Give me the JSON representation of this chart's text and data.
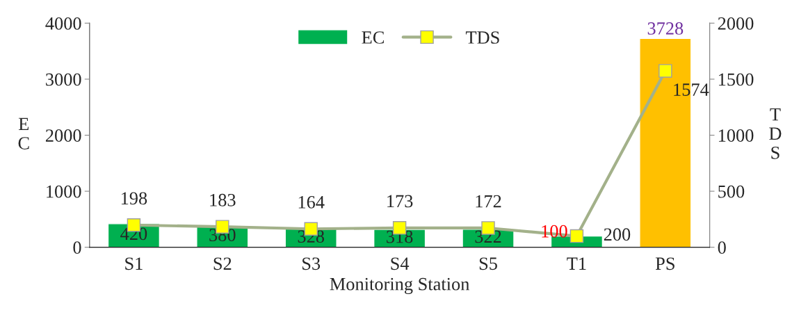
{
  "chart_data": {
    "type": "bar",
    "xlabel": "Monitoring Station",
    "ylabel": "EC",
    "y2label": "TDS",
    "categories": [
      "S1",
      "S2",
      "S3",
      "S4",
      "S5",
      "T1",
      "PS"
    ],
    "series": [
      {
        "name": "EC",
        "color": "#00b050",
        "colors": [
          "#00b050",
          "#00b050",
          "#00b050",
          "#00b050",
          "#00b050",
          "#00b050",
          "#ffc000"
        ],
        "values": [
          420,
          380,
          328,
          318,
          322,
          200,
          3728
        ]
      },
      {
        "name": "TDS",
        "type": "line",
        "axis": "y2",
        "color": "#a3b18a",
        "marker": "square",
        "values": [
          198,
          183,
          164,
          173,
          172,
          100,
          1574
        ]
      }
    ],
    "data_labels": true,
    "legend": "top",
    "grid": false,
    "ylim": [
      0,
      4000
    ],
    "yticks": [
      0,
      1000,
      2000,
      3000,
      4000
    ],
    "y2lim": [
      0,
      2000
    ],
    "y2ticks": [
      0,
      500,
      1000,
      1500,
      2000
    ]
  }
}
